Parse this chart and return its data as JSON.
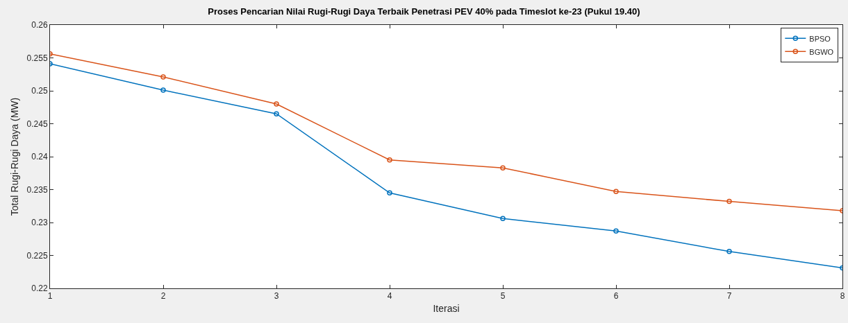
{
  "chart_data": {
    "type": "line",
    "title": "Proses Pencarian Nilai Rugi-Rugi Daya Terbaik Penetrasi PEV 40% pada Timeslot ke-23 (Pukul 19.40)",
    "xlabel": "Iterasi",
    "ylabel": "Total Rugi-Rugi Daya (MW)",
    "x": [
      1,
      2,
      3,
      4,
      5,
      6,
      7,
      8
    ],
    "series": [
      {
        "name": "BPSO",
        "color": "#0072bd",
        "values": [
          0.2541,
          0.2501,
          0.2465,
          0.2345,
          0.2306,
          0.2287,
          0.2256,
          0.2231
        ]
      },
      {
        "name": "BGWO",
        "color": "#d95319",
        "values": [
          0.2556,
          0.2521,
          0.248,
          0.2395,
          0.2383,
          0.2347,
          0.2332,
          0.2318
        ]
      }
    ],
    "xlim": [
      1,
      8
    ],
    "xticks": [
      1,
      2,
      3,
      4,
      5,
      6,
      7,
      8
    ],
    "ylim": [
      0.22,
      0.26
    ],
    "yticks": [
      0.22,
      0.225,
      0.23,
      0.235,
      0.24,
      0.245,
      0.25,
      0.255,
      0.26
    ],
    "grid": false,
    "legend": "top right",
    "marker": "circle",
    "line_style": "solid"
  }
}
